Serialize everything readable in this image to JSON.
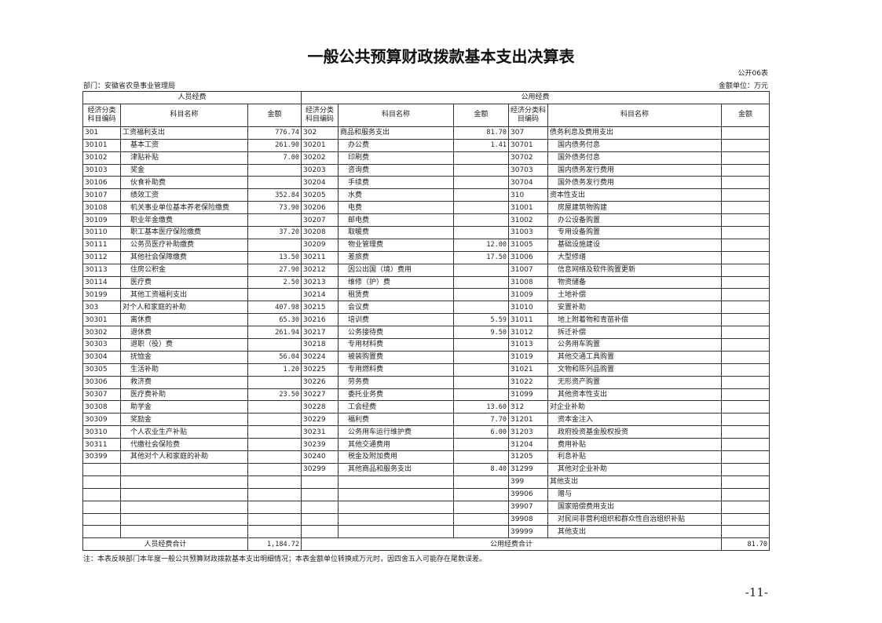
{
  "title": "一般公共预算财政拨款基本支出决算表",
  "form_no": "公开06表",
  "department": "部门：安徽省农垦事业管理局",
  "unit": "金额单位：万元",
  "groups": {
    "personnel": "人员经费",
    "public": "公用经费"
  },
  "columns": {
    "code": "经济分类科目编码",
    "name": "科目名称",
    "amount": "金额"
  },
  "left_rows": [
    [
      "301",
      "工资福利支出",
      "776.74"
    ],
    [
      "30101",
      "基本工资",
      "261.90"
    ],
    [
      "30102",
      "津贴补贴",
      "7.00"
    ],
    [
      "30103",
      "奖金",
      ""
    ],
    [
      "30106",
      "伙食补助费",
      ""
    ],
    [
      "30107",
      "绩效工资",
      "352.84"
    ],
    [
      "30108",
      "机关事业单位基本养老保险缴费",
      "73.90"
    ],
    [
      "30109",
      "职业年金缴费",
      ""
    ],
    [
      "30110",
      "职工基本医疗保险缴费",
      "37.20"
    ],
    [
      "30111",
      "公务员医疗补助缴费",
      ""
    ],
    [
      "30112",
      "其他社会保障缴费",
      "13.50"
    ],
    [
      "30113",
      "住房公积金",
      "27.90"
    ],
    [
      "30114",
      "医疗费",
      "2.50"
    ],
    [
      "30199",
      "其他工资福利支出",
      ""
    ],
    [
      "303",
      "对个人和家庭的补助",
      "407.98"
    ],
    [
      "30301",
      "离休费",
      "65.30"
    ],
    [
      "30302",
      "退休费",
      "261.94"
    ],
    [
      "30303",
      "退职（役）费",
      ""
    ],
    [
      "30304",
      "抚恤金",
      "56.04"
    ],
    [
      "30305",
      "生活补助",
      "1.20"
    ],
    [
      "30306",
      "救济费",
      ""
    ],
    [
      "30307",
      "医疗费补助",
      "23.50"
    ],
    [
      "30308",
      "助学金",
      ""
    ],
    [
      "30309",
      "奖励金",
      ""
    ],
    [
      "30310",
      "个人农业生产补贴",
      ""
    ],
    [
      "30311",
      "代缴社会保险费",
      ""
    ],
    [
      "30399",
      "其他对个人和家庭的补助",
      ""
    ]
  ],
  "mid_rows": [
    [
      "302",
      "商品和服务支出",
      "81.70"
    ],
    [
      "30201",
      "办公费",
      "1.41"
    ],
    [
      "30202",
      "印刷费",
      ""
    ],
    [
      "30203",
      "咨询费",
      ""
    ],
    [
      "30204",
      "手续费",
      ""
    ],
    [
      "30205",
      "水费",
      ""
    ],
    [
      "30206",
      "电费",
      ""
    ],
    [
      "30207",
      "邮电费",
      ""
    ],
    [
      "30208",
      "取暖费",
      ""
    ],
    [
      "30209",
      "物业管理费",
      "12.00"
    ],
    [
      "30211",
      "差旅费",
      "17.50"
    ],
    [
      "30212",
      "因公出国（境）费用",
      ""
    ],
    [
      "30213",
      "维修（护）费",
      ""
    ],
    [
      "30214",
      "租赁费",
      ""
    ],
    [
      "30215",
      "会议费",
      ""
    ],
    [
      "30216",
      "培训费",
      "5.59"
    ],
    [
      "30217",
      "公务接待费",
      "9.50"
    ],
    [
      "30218",
      "专用材料费",
      ""
    ],
    [
      "30224",
      "被装购置费",
      ""
    ],
    [
      "30225",
      "专用燃料费",
      ""
    ],
    [
      "30226",
      "劳务费",
      ""
    ],
    [
      "30227",
      "委托业务费",
      ""
    ],
    [
      "30228",
      "工会经费",
      "13.60"
    ],
    [
      "30229",
      "福利费",
      "7.70"
    ],
    [
      "30231",
      "公务用车运行维护费",
      "6.00"
    ],
    [
      "30239",
      "其他交通费用",
      ""
    ],
    [
      "30240",
      "税金及附加费用",
      ""
    ],
    [
      "30299",
      "其他商品和服务支出",
      "8.40"
    ]
  ],
  "right_rows": [
    [
      "307",
      "债务利息及费用支出",
      ""
    ],
    [
      "30701",
      "国内债务付息",
      ""
    ],
    [
      "30702",
      "国外债务付息",
      ""
    ],
    [
      "30703",
      "国内债务发行费用",
      ""
    ],
    [
      "30704",
      "国外债务发行费用",
      ""
    ],
    [
      "310",
      "资本性支出",
      ""
    ],
    [
      "31001",
      "房屋建筑物购建",
      ""
    ],
    [
      "31002",
      "办公设备购置",
      ""
    ],
    [
      "31003",
      "专用设备购置",
      ""
    ],
    [
      "31005",
      "基础设施建设",
      ""
    ],
    [
      "31006",
      "大型修缮",
      ""
    ],
    [
      "31007",
      "信息网络及软件购置更新",
      ""
    ],
    [
      "31008",
      "物资储备",
      ""
    ],
    [
      "31009",
      "土地补偿",
      ""
    ],
    [
      "31010",
      "安置补助",
      ""
    ],
    [
      "31011",
      "地上附着物和青苗补偿",
      ""
    ],
    [
      "31012",
      "拆迁补偿",
      ""
    ],
    [
      "31013",
      "公务用车购置",
      ""
    ],
    [
      "31019",
      "其他交通工具购置",
      ""
    ],
    [
      "31021",
      "文物和陈列品购置",
      ""
    ],
    [
      "31022",
      "无形资产购置",
      ""
    ],
    [
      "31099",
      "其他资本性支出",
      ""
    ],
    [
      "312",
      "对企业补助",
      ""
    ],
    [
      "31201",
      "资本金注入",
      ""
    ],
    [
      "31203",
      "政府投资基金股权投资",
      ""
    ],
    [
      "31204",
      "费用补贴",
      ""
    ],
    [
      "31205",
      "利息补贴",
      ""
    ],
    [
      "31299",
      "其他对企业补助",
      ""
    ],
    [
      "399",
      "其他支出",
      ""
    ],
    [
      "39906",
      "赠与",
      ""
    ],
    [
      "39907",
      "国家赔偿费用支出",
      ""
    ],
    [
      "39908",
      "对民间非营利组织和群众性自治组织补贴",
      ""
    ],
    [
      "39999",
      "其他支出",
      ""
    ]
  ],
  "totals": {
    "personnel_label": "人员经费合计",
    "personnel_amount": "1,184.72",
    "public_label": "公用经费合计",
    "public_amount": "81.70"
  },
  "note": "注：本表反映部门本年度一般公共预算财政拨款基本支出明细情况；本表金额单位转换成万元时，因四舍五入可能存在尾数误差。",
  "page_number": "-11-"
}
